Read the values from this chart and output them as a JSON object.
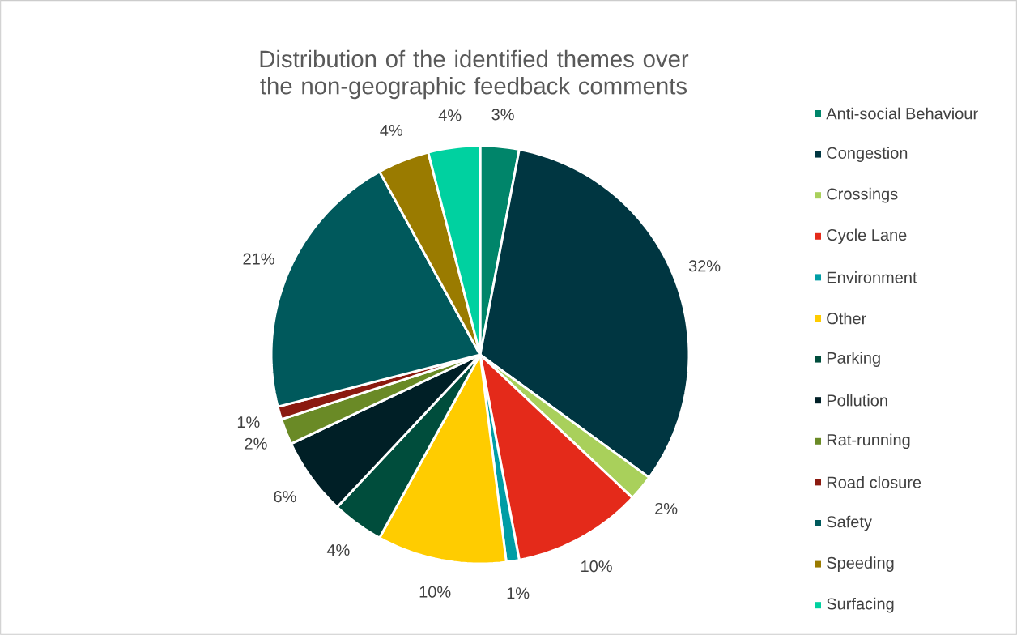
{
  "chart_data": {
    "type": "pie",
    "title": "Distribution of the identified themes over the non-geographic feedback comments",
    "categories": [
      "Anti-social Behaviour",
      "Congestion",
      "Crossings",
      "Cycle Lane",
      "Environment",
      "Other",
      "Parking",
      "Pollution",
      "Rat-running",
      "Road closure",
      "Safety",
      "Speeding",
      "Surfacing"
    ],
    "values": [
      3,
      32,
      2,
      10,
      1,
      10,
      4,
      6,
      2,
      1,
      21,
      4,
      4
    ],
    "value_labels": [
      "3%",
      "32%",
      "2%",
      "10%",
      "1%",
      "10%",
      "4%",
      "6%",
      "2%",
      "1%",
      "21%",
      "4%",
      "4%"
    ],
    "colors": [
      "#00856a",
      "#003641",
      "#a9d05b",
      "#e42a1a",
      "#009da5",
      "#ffcc00",
      "#004d3c",
      "#001f26",
      "#6a8a26",
      "#8b1a10",
      "#00595c",
      "#9a7b00",
      "#00d1a0"
    ],
    "legend": "right"
  }
}
